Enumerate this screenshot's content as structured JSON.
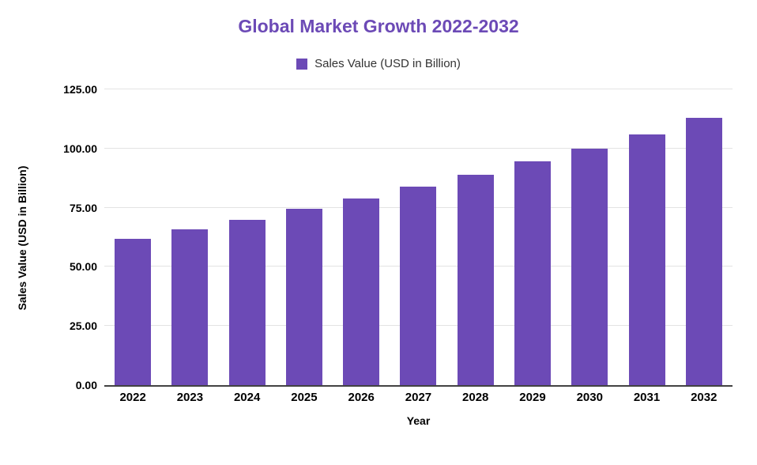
{
  "accent": "#6C4AB6",
  "chart_data": {
    "type": "bar",
    "title": "Global Market Growth 2022-2032",
    "legend": "Sales Value (USD in Billion)",
    "xlabel": "Year",
    "ylabel": "Sales Value (USD in Billion)",
    "categories": [
      "2022",
      "2023",
      "2024",
      "2025",
      "2026",
      "2027",
      "2028",
      "2029",
      "2030",
      "2031",
      "2032"
    ],
    "values": [
      62,
      66,
      70,
      74.5,
      79,
      84,
      89,
      94.5,
      100,
      106,
      113
    ],
    "ylim": [
      0,
      125
    ],
    "y_ticks": [
      0,
      25,
      50,
      75,
      100,
      125
    ],
    "y_tick_labels": [
      "0.00",
      "25.00",
      "50.00",
      "75.00",
      "100.00",
      "125.00"
    ],
    "grid": true,
    "legend_position": "top",
    "colors": {
      "bar": "#6C4AB6",
      "title": "#6C4AB6",
      "grid": "#e3e3e3",
      "axis": "#424242",
      "text": "#000000"
    }
  }
}
